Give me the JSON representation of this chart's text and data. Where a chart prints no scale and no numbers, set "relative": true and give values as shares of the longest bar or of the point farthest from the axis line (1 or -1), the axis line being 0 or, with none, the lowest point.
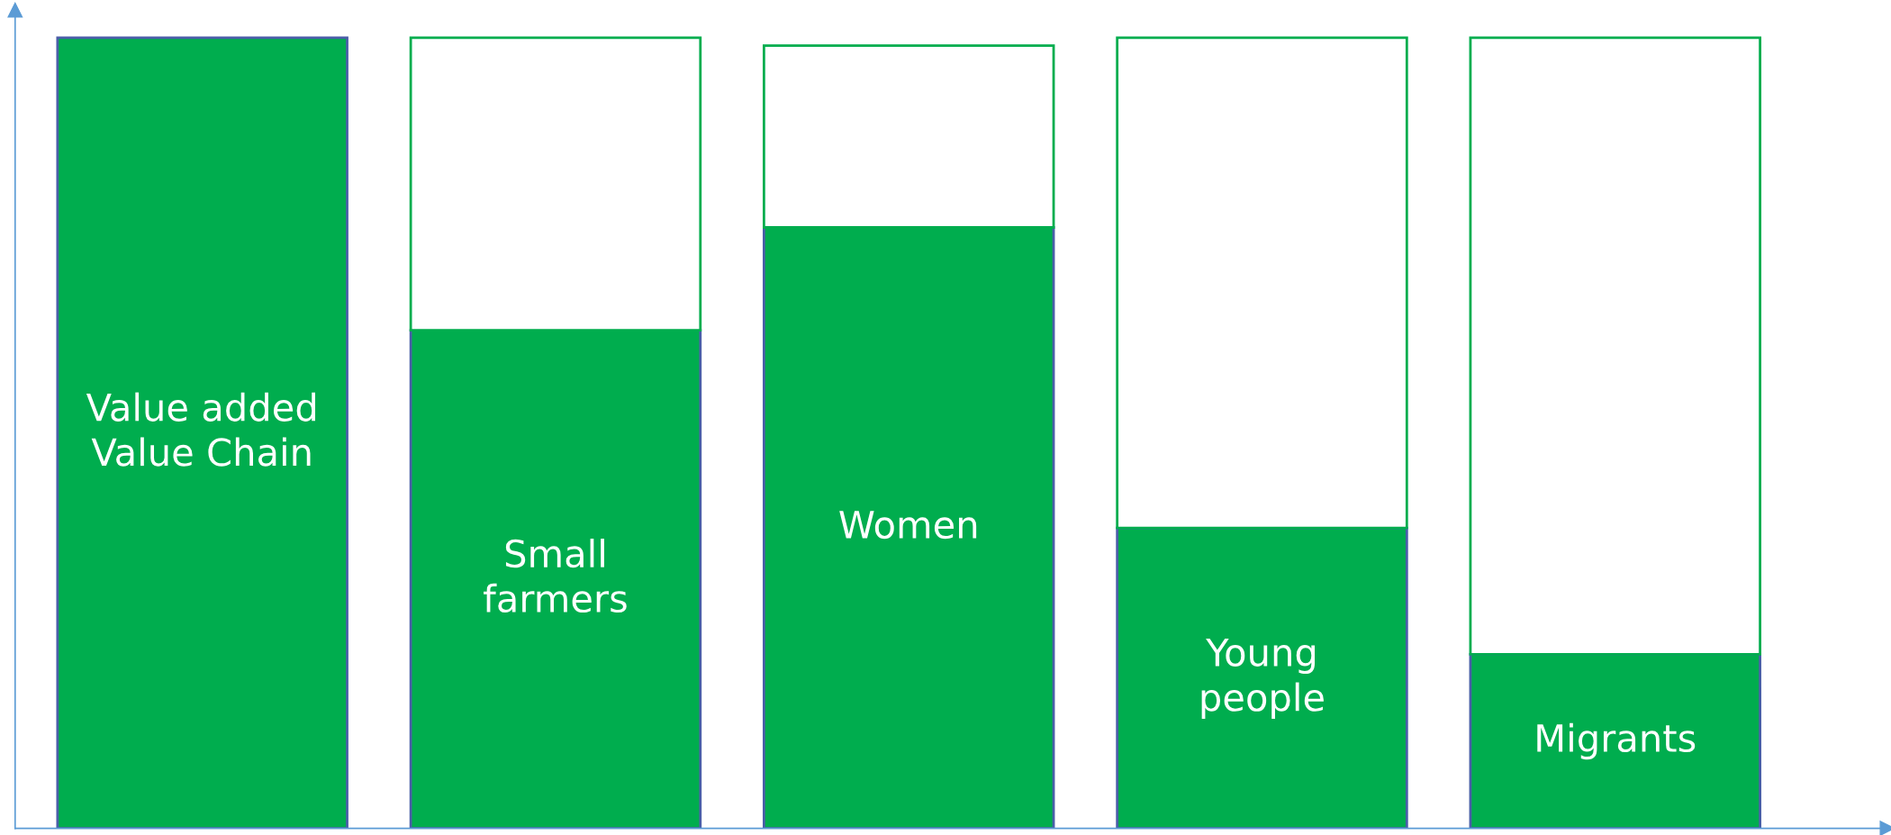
{
  "chart_data": {
    "type": "bar",
    "relative": true,
    "stacked": true,
    "tick_labels": false,
    "categories": [
      "Value added\nValue Chain",
      "Small\nfarmers",
      "Women",
      "Young\npeople",
      "Migrants"
    ],
    "series": [
      {
        "color": "#00ad4e",
        "values": [
          1.0,
          0.63,
          0.76,
          0.38,
          0.22
        ]
      },
      {
        "color": "#ffffff",
        "values": [
          null,
          0.37,
          0.23,
          0.62,
          0.78
        ]
      }
    ]
  }
}
